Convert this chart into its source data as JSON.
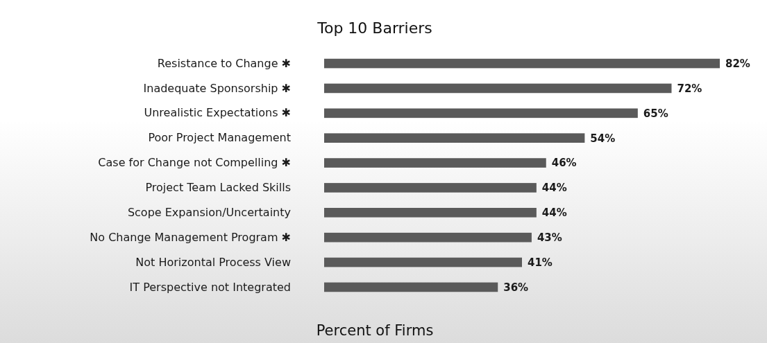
{
  "chart_data": {
    "type": "bar",
    "orientation": "horizontal",
    "title": "Top 10 Barriers",
    "xlabel": "Percent of Firms",
    "categories": [
      "Resistance to Change ✱",
      "Inadequate Sponsorship ✱",
      "Unrealistic Expectations ✱",
      "Poor Project Management",
      "Case for Change not Compelling ✱",
      "Project Team Lacked Skills",
      "Scope Expansion/Uncertainty",
      "No Change Management Program ✱",
      "Not Horizontal Process View",
      "IT Perspective not Integrated"
    ],
    "values": [
      82,
      72,
      65,
      54,
      46,
      44,
      44,
      43,
      41,
      36
    ],
    "value_labels": [
      "82%",
      "72%",
      "65%",
      "54%",
      "46%",
      "44%",
      "44%",
      "43%",
      "41%",
      "36%"
    ],
    "color": "#5a5a5a"
  }
}
